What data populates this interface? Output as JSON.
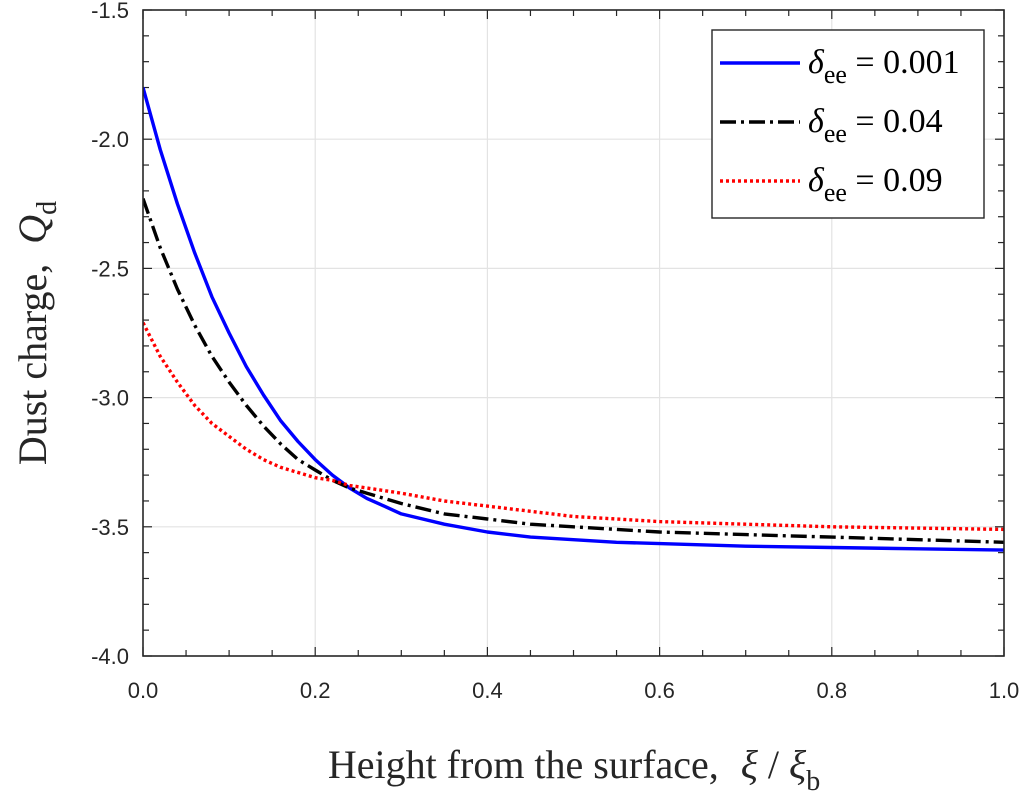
{
  "chart_data": {
    "type": "line",
    "xlabel": "Height from the surface,",
    "xlabel_math": {
      "symbol": "ξ",
      "divider": " / ",
      "base": "ξ",
      "subscript": "b"
    },
    "ylabel": "Dust charge,",
    "ylabel_math": {
      "symbol": "Q",
      "subscript": "d"
    },
    "xlim": [
      0.0,
      1.0
    ],
    "ylim": [
      -4.0,
      -1.5
    ],
    "xticks": [
      0.0,
      0.2,
      0.4,
      0.6,
      0.8,
      1.0
    ],
    "xtick_labels": [
      "0.0",
      "0.2",
      "0.4",
      "0.6",
      "0.8",
      "1.0"
    ],
    "yticks": [
      -4.0,
      -3.5,
      -3.0,
      -2.5,
      -2.0,
      -1.5
    ],
    "ytick_labels": [
      "-4.0",
      "-3.5",
      "-3.0",
      "-2.5",
      "-2.0",
      "-1.5"
    ],
    "grid": true,
    "legend_position": "top-right",
    "series": [
      {
        "name": "δee = 0.001",
        "legend": {
          "symbol": "δ",
          "subscript": "ee",
          "value": " = 0.001"
        },
        "color": "#0000ff",
        "style": "solid",
        "x": [
          0.0,
          0.02,
          0.04,
          0.06,
          0.08,
          0.1,
          0.12,
          0.14,
          0.16,
          0.18,
          0.2,
          0.22,
          0.24,
          0.26,
          0.28,
          0.3,
          0.35,
          0.4,
          0.45,
          0.5,
          0.55,
          0.6,
          0.7,
          0.8,
          0.9,
          1.0
        ],
        "y": [
          -1.8,
          -2.04,
          -2.25,
          -2.44,
          -2.61,
          -2.75,
          -2.88,
          -2.99,
          -3.09,
          -3.17,
          -3.24,
          -3.3,
          -3.35,
          -3.39,
          -3.42,
          -3.45,
          -3.49,
          -3.52,
          -3.54,
          -3.55,
          -3.56,
          -3.565,
          -3.575,
          -3.58,
          -3.585,
          -3.59
        ]
      },
      {
        "name": "δee = 0.04",
        "legend": {
          "symbol": "δ",
          "subscript": "ee",
          "value": " = 0.04"
        },
        "color": "#000000",
        "style": "dashdot",
        "x": [
          0.0,
          0.02,
          0.04,
          0.06,
          0.08,
          0.1,
          0.12,
          0.14,
          0.16,
          0.18,
          0.2,
          0.22,
          0.24,
          0.26,
          0.28,
          0.3,
          0.35,
          0.4,
          0.45,
          0.5,
          0.55,
          0.6,
          0.7,
          0.8,
          0.9,
          1.0
        ],
        "y": [
          -2.23,
          -2.42,
          -2.58,
          -2.72,
          -2.84,
          -2.94,
          -3.03,
          -3.11,
          -3.18,
          -3.24,
          -3.28,
          -3.32,
          -3.35,
          -3.37,
          -3.39,
          -3.41,
          -3.45,
          -3.47,
          -3.49,
          -3.5,
          -3.51,
          -3.52,
          -3.53,
          -3.54,
          -3.55,
          -3.56
        ]
      },
      {
        "name": "δee = 0.09",
        "legend": {
          "symbol": "δ",
          "subscript": "ee",
          "value": " = 0.09"
        },
        "color": "#ff0000",
        "style": "dotted",
        "x": [
          0.0,
          0.02,
          0.04,
          0.06,
          0.08,
          0.1,
          0.12,
          0.14,
          0.16,
          0.18,
          0.2,
          0.22,
          0.24,
          0.26,
          0.28,
          0.3,
          0.35,
          0.4,
          0.45,
          0.5,
          0.55,
          0.6,
          0.7,
          0.8,
          0.9,
          1.0
        ],
        "y": [
          -2.71,
          -2.84,
          -2.94,
          -3.03,
          -3.1,
          -3.15,
          -3.2,
          -3.24,
          -3.27,
          -3.29,
          -3.31,
          -3.32,
          -3.34,
          -3.35,
          -3.36,
          -3.37,
          -3.4,
          -3.42,
          -3.44,
          -3.46,
          -3.47,
          -3.48,
          -3.49,
          -3.5,
          -3.505,
          -3.51
        ]
      }
    ]
  }
}
